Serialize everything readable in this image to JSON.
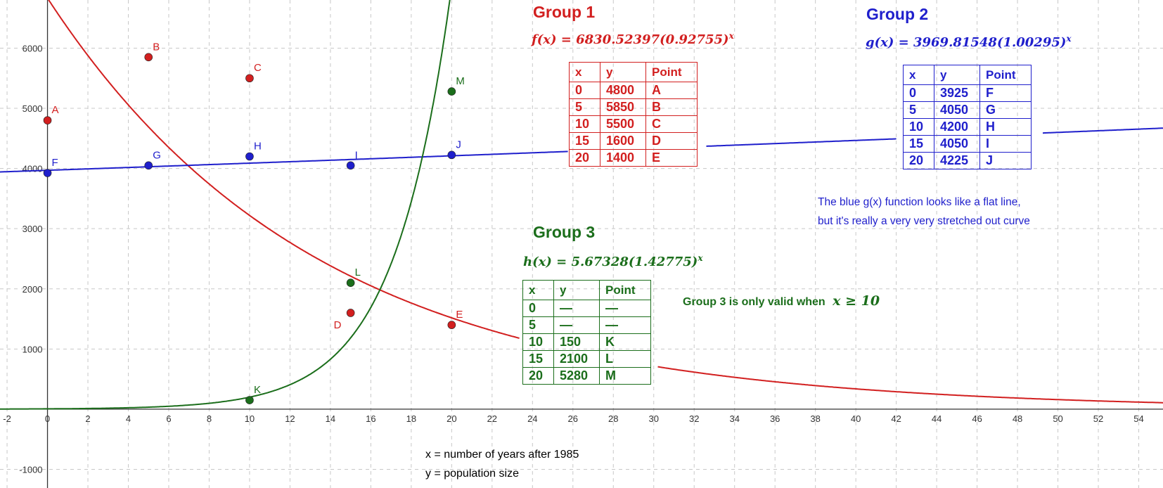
{
  "chart_data": {
    "type": "scatter",
    "xlim": [
      -2.35,
      55.2
    ],
    "ylim": [
      -1310,
      6800
    ],
    "grid": true,
    "x_ticks": [
      -2,
      0,
      2,
      4,
      6,
      8,
      10,
      12,
      14,
      16,
      18,
      20,
      22,
      24,
      26,
      28,
      30,
      32,
      34,
      36,
      38,
      40,
      42,
      44,
      46,
      48,
      50,
      52,
      54
    ],
    "y_ticks": [
      -1000,
      1000,
      2000,
      3000,
      4000,
      5000,
      6000
    ],
    "x_tick_labels": [
      "-2",
      "0",
      "2",
      "4",
      "6",
      "8",
      "10",
      "12",
      "14",
      "16",
      "18",
      "20",
      "22",
      "24",
      "26",
      "28",
      "30",
      "32",
      "34",
      "36",
      "38",
      "40",
      "42",
      "44",
      "46",
      "48",
      "50",
      "52",
      "54"
    ],
    "y_tick_labels": [
      "-1000",
      "1000",
      "2000",
      "3000",
      "4000",
      "5000",
      "6000"
    ],
    "series": [
      {
        "title": "Group 1",
        "color": "#d21f1f",
        "function": {
          "name": "f",
          "a": 6830.52397,
          "b": 0.92755,
          "text": "f(x) = 6830.52397(0.92755)"
        },
        "points": [
          {
            "label": "A",
            "x": 0,
            "y": 4800
          },
          {
            "label": "B",
            "x": 5,
            "y": 5850
          },
          {
            "label": "C",
            "x": 10,
            "y": 5500
          },
          {
            "label": "D",
            "x": 15,
            "y": 1600
          },
          {
            "label": "E",
            "x": 20,
            "y": 1400
          }
        ]
      },
      {
        "title": "Group 2",
        "color": "#1f1fcc",
        "function": {
          "name": "g",
          "a": 3969.81548,
          "b": 1.00295,
          "text": "g(x) = 3969.81548(1.00295)"
        },
        "points": [
          {
            "label": "F",
            "x": 0,
            "y": 3925
          },
          {
            "label": "G",
            "x": 5,
            "y": 4050
          },
          {
            "label": "H",
            "x": 10,
            "y": 4200
          },
          {
            "label": "I",
            "x": 15,
            "y": 4050
          },
          {
            "label": "J",
            "x": 20,
            "y": 4225
          }
        ]
      },
      {
        "title": "Group 3",
        "color": "#1b6e1b",
        "function": {
          "name": "h",
          "a": 5.67328,
          "b": 1.42775,
          "text": "h(x) = 5.67328(1.42775)"
        },
        "points": [
          {
            "label": "K",
            "x": 10,
            "y": 150
          },
          {
            "label": "L",
            "x": 15,
            "y": 2100
          },
          {
            "label": "M",
            "x": 20,
            "y": 5280
          }
        ]
      }
    ],
    "tables": {
      "header": [
        "x",
        "y",
        "Point"
      ],
      "group1": [
        [
          "0",
          "4800",
          "A"
        ],
        [
          "5",
          "5850",
          "B"
        ],
        [
          "10",
          "5500",
          "C"
        ],
        [
          "15",
          "1600",
          "D"
        ],
        [
          "20",
          "1400",
          "E"
        ]
      ],
      "group2": [
        [
          "0",
          "3925",
          "F"
        ],
        [
          "5",
          "4050",
          "G"
        ],
        [
          "10",
          "4200",
          "H"
        ],
        [
          "15",
          "4050",
          "I"
        ],
        [
          "20",
          "4225",
          "J"
        ]
      ],
      "group3": [
        [
          "0",
          "—",
          "—"
        ],
        [
          "5",
          "—",
          "—"
        ],
        [
          "10",
          "150",
          "K"
        ],
        [
          "15",
          "2100",
          "L"
        ],
        [
          "20",
          "5280",
          "M"
        ]
      ]
    },
    "exponent": "x",
    "notes": {
      "blue_line1": "The blue g(x) function looks like a flat line,",
      "blue_line2": "but it's really a very very stretched out curve",
      "green_prefix": "Group 3 is only valid when",
      "green_condition": "x ≥ 10",
      "x_meaning": "x = number of years after 1985",
      "y_meaning": "y = population size"
    }
  }
}
